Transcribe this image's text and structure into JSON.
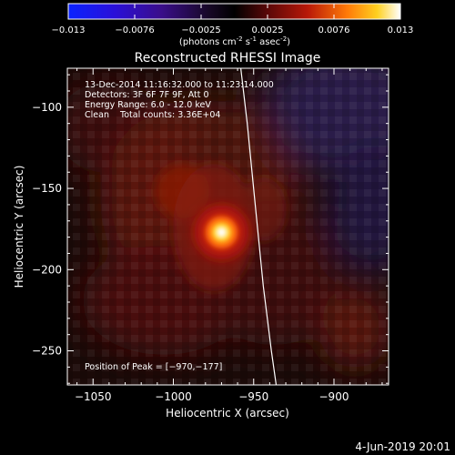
{
  "colorbar": {
    "ticks": [
      "-0.013",
      "-0.0076",
      "-0.0025",
      "0.0025",
      "0.0076",
      "0.013"
    ],
    "unit_parts": [
      "(photons cm",
      "-2",
      " s",
      "-1",
      " asec",
      "-2",
      ")"
    ]
  },
  "chart_data": {
    "type": "heatmap",
    "title": "Reconstructed RHESSI Image",
    "xlabel": "Heliocentric X (arcsec)",
    "ylabel": "Heliocentric Y (arcsec)",
    "xlim": [
      -1066,
      -866
    ],
    "ylim": [
      -271,
      -76
    ],
    "x_ticks": [
      {
        "value": -1050,
        "label": "−1050"
      },
      {
        "value": -1000,
        "label": "−1000"
      },
      {
        "value": -950,
        "label": "−950"
      },
      {
        "value": -900,
        "label": "−900"
      }
    ],
    "y_ticks": [
      {
        "value": -100,
        "label": "−100"
      },
      {
        "value": -150,
        "label": "−150"
      },
      {
        "value": -200,
        "label": "−200"
      },
      {
        "value": -250,
        "label": "−250"
      }
    ],
    "color_range": [
      -0.013,
      0.013
    ],
    "peak": [
      -970,
      -177
    ],
    "limb_curve": [
      [
        -958,
        -76
      ],
      [
        -954,
        -110
      ],
      [
        -950,
        -150
      ],
      [
        -947,
        -180
      ],
      [
        -944,
        -210
      ],
      [
        -939,
        -250
      ],
      [
        -936,
        -271
      ]
    ],
    "info_lines": [
      "13-Dec-2014 11:16:32.000 to 11:23:14.000",
      "Detectors: 3F 6F 7F 9F, Att 0",
      "Energy Range: 6.0 - 12.0 keV",
      "Clean    Total counts: 3.36E+04"
    ],
    "peak_label": "Position of Peak = [−970,−177]"
  },
  "footer": {
    "date": "4-Jun-2019 20:01"
  }
}
